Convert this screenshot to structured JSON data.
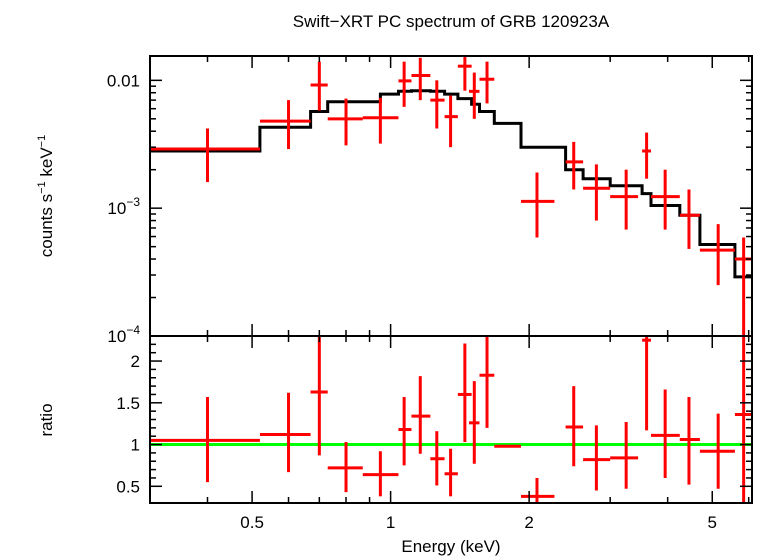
{
  "chart_data": {
    "type": "scatter",
    "title": "Swift−XRT PC spectrum of GRB 120923A",
    "xlabel": "Energy (keV)",
    "xscale": "log",
    "xlim": [
      0.3,
      6.1
    ],
    "x_ticks": [
      {
        "value": 0.5,
        "label": "0.5"
      },
      {
        "value": 1,
        "label": "1"
      },
      {
        "value": 2,
        "label": "2"
      },
      {
        "value": 5,
        "label": "5"
      }
    ],
    "colors": {
      "data": "#ff0000",
      "model": "#000000",
      "unity": "#00ff00"
    },
    "panels": [
      {
        "name": "spectrum",
        "ylabel_main": "counts s",
        "ylabel_sup1": "−1",
        "ylabel_mid": " keV",
        "ylabel_sup2": "−1",
        "yscale": "log",
        "ylim": [
          0.0001,
          0.0155
        ],
        "y_ticks": [
          {
            "value": 0.01,
            "base": "0.01",
            "exp": ""
          },
          {
            "value": 0.001,
            "base": "10",
            "exp": "−3"
          },
          {
            "value": 0.0001,
            "base": "10",
            "exp": "−4"
          }
        ],
        "data": [
          {
            "x": 0.4,
            "xlo": 0.3,
            "xhi": 0.52,
            "y": 0.0029,
            "ylo": 0.0016,
            "yhi": 0.0042
          },
          {
            "x": 0.6,
            "xlo": 0.52,
            "xhi": 0.67,
            "y": 0.0048,
            "ylo": 0.0029,
            "yhi": 0.007
          },
          {
            "x": 0.7,
            "xlo": 0.67,
            "xhi": 0.73,
            "y": 0.0092,
            "ylo": 0.0058,
            "yhi": 0.014
          },
          {
            "x": 0.8,
            "xlo": 0.73,
            "xhi": 0.87,
            "y": 0.005,
            "ylo": 0.0031,
            "yhi": 0.0072
          },
          {
            "x": 0.95,
            "xlo": 0.87,
            "xhi": 1.04,
            "y": 0.0051,
            "ylo": 0.0032,
            "yhi": 0.0073
          },
          {
            "x": 1.07,
            "xlo": 1.04,
            "xhi": 1.11,
            "y": 0.0099,
            "ylo": 0.0062,
            "yhi": 0.014
          },
          {
            "x": 1.16,
            "xlo": 1.11,
            "xhi": 1.22,
            "y": 0.0109,
            "ylo": 0.007,
            "yhi": 0.015
          },
          {
            "x": 1.26,
            "xlo": 1.22,
            "xhi": 1.31,
            "y": 0.007,
            "ylo": 0.0042,
            "yhi": 0.01
          },
          {
            "x": 1.35,
            "xlo": 1.31,
            "xhi": 1.4,
            "y": 0.0052,
            "ylo": 0.003,
            "yhi": 0.0076
          },
          {
            "x": 1.45,
            "xlo": 1.4,
            "xhi": 1.5,
            "y": 0.0129,
            "ylo": 0.0083,
            "yhi": 0.0155
          },
          {
            "x": 1.52,
            "xlo": 1.48,
            "xhi": 1.56,
            "y": 0.0082,
            "ylo": 0.005,
            "yhi": 0.0115
          },
          {
            "x": 1.62,
            "xlo": 1.56,
            "xhi": 1.68,
            "y": 0.0102,
            "ylo": 0.0066,
            "yhi": 0.014
          },
          {
            "x": 2.08,
            "xlo": 1.92,
            "xhi": 2.27,
            "y": 0.00113,
            "ylo": 0.00059,
            "yhi": 0.0019
          },
          {
            "x": 2.5,
            "xlo": 2.4,
            "xhi": 2.62,
            "y": 0.0023,
            "ylo": 0.0014,
            "yhi": 0.0033
          },
          {
            "x": 2.8,
            "xlo": 2.62,
            "xhi": 3.0,
            "y": 0.00143,
            "ylo": 0.0008,
            "yhi": 0.0022
          },
          {
            "x": 3.25,
            "xlo": 3.0,
            "xhi": 3.45,
            "y": 0.00123,
            "ylo": 0.00068,
            "yhi": 0.002
          },
          {
            "x": 3.6,
            "xlo": 3.52,
            "xhi": 3.68,
            "y": 0.0028,
            "ylo": 0.0017,
            "yhi": 0.0039
          },
          {
            "x": 3.95,
            "xlo": 3.68,
            "xhi": 4.25,
            "y": 0.00123,
            "ylo": 0.00068,
            "yhi": 0.002
          },
          {
            "x": 4.45,
            "xlo": 4.25,
            "xhi": 4.7,
            "y": 0.00088,
            "ylo": 0.00048,
            "yhi": 0.0014
          },
          {
            "x": 5.15,
            "xlo": 4.7,
            "xhi": 5.6,
            "y": 0.00047,
            "ylo": 0.00025,
            "yhi": 0.00075
          },
          {
            "x": 5.85,
            "xlo": 5.6,
            "xhi": 6.1,
            "y": 0.0004,
            "ylo": 0.0001,
            "yhi": 0.00059
          }
        ],
        "model_steps": [
          {
            "xlo": 0.3,
            "xhi": 0.52,
            "y": 0.0028
          },
          {
            "xlo": 0.52,
            "xhi": 0.67,
            "y": 0.0043
          },
          {
            "xlo": 0.67,
            "xhi": 0.73,
            "y": 0.0057
          },
          {
            "xlo": 0.73,
            "xhi": 0.87,
            "y": 0.0068
          },
          {
            "xlo": 0.87,
            "xhi": 0.95,
            "y": 0.0068
          },
          {
            "xlo": 0.95,
            "xhi": 1.04,
            "y": 0.0078
          },
          {
            "xlo": 1.04,
            "xhi": 1.11,
            "y": 0.0082
          },
          {
            "xlo": 1.11,
            "xhi": 1.22,
            "y": 0.0083
          },
          {
            "xlo": 1.22,
            "xhi": 1.31,
            "y": 0.0082
          },
          {
            "xlo": 1.31,
            "xhi": 1.4,
            "y": 0.0078
          },
          {
            "xlo": 1.4,
            "xhi": 1.5,
            "y": 0.0072
          },
          {
            "xlo": 1.5,
            "xhi": 1.56,
            "y": 0.0065
          },
          {
            "xlo": 1.56,
            "xhi": 1.68,
            "y": 0.0057
          },
          {
            "xlo": 1.68,
            "xhi": 1.92,
            "y": 0.0046
          },
          {
            "xlo": 1.92,
            "xhi": 2.4,
            "y": 0.003
          },
          {
            "xlo": 2.4,
            "xhi": 2.62,
            "y": 0.002
          },
          {
            "xlo": 2.62,
            "xhi": 3.0,
            "y": 0.0017
          },
          {
            "xlo": 3.0,
            "xhi": 3.52,
            "y": 0.0015
          },
          {
            "xlo": 3.52,
            "xhi": 3.68,
            "y": 0.0013
          },
          {
            "xlo": 3.68,
            "xhi": 4.25,
            "y": 0.00105
          },
          {
            "xlo": 4.25,
            "xhi": 4.7,
            "y": 0.00088
          },
          {
            "xlo": 4.7,
            "xhi": 5.6,
            "y": 0.00052
          },
          {
            "xlo": 5.6,
            "xhi": 6.1,
            "y": 0.00029
          }
        ]
      },
      {
        "name": "ratio",
        "ylabel": "ratio",
        "yscale": "linear",
        "ylim": [
          0.3,
          2.3
        ],
        "y_ticks": [
          {
            "value": 0.5,
            "label": "0.5"
          },
          {
            "value": 1,
            "label": "1"
          },
          {
            "value": 1.5,
            "label": "1.5"
          },
          {
            "value": 2,
            "label": "2"
          }
        ],
        "unity_y": 1.0,
        "data": [
          {
            "x": 0.4,
            "xlo": 0.3,
            "xhi": 0.52,
            "y": 1.05,
            "ylo": 0.55,
            "yhi": 1.57
          },
          {
            "x": 0.6,
            "xlo": 0.52,
            "xhi": 0.67,
            "y": 1.12,
            "ylo": 0.67,
            "yhi": 1.62
          },
          {
            "x": 0.7,
            "xlo": 0.67,
            "xhi": 0.73,
            "y": 1.63,
            "ylo": 0.87,
            "yhi": 2.3
          },
          {
            "x": 0.8,
            "xlo": 0.73,
            "xhi": 0.87,
            "y": 0.72,
            "ylo": 0.43,
            "yhi": 1.03
          },
          {
            "x": 0.95,
            "xlo": 0.87,
            "xhi": 1.04,
            "y": 0.64,
            "ylo": 0.38,
            "yhi": 0.92
          },
          {
            "x": 1.07,
            "xlo": 1.04,
            "xhi": 1.11,
            "y": 1.18,
            "ylo": 0.75,
            "yhi": 1.57
          },
          {
            "x": 1.16,
            "xlo": 1.11,
            "xhi": 1.22,
            "y": 1.34,
            "ylo": 0.89,
            "yhi": 1.82
          },
          {
            "x": 1.26,
            "xlo": 1.22,
            "xhi": 1.31,
            "y": 0.83,
            "ylo": 0.51,
            "yhi": 1.16
          },
          {
            "x": 1.35,
            "xlo": 1.31,
            "xhi": 1.4,
            "y": 0.65,
            "ylo": 0.38,
            "yhi": 0.95
          },
          {
            "x": 1.45,
            "xlo": 1.4,
            "xhi": 1.5,
            "y": 1.6,
            "ylo": 1.03,
            "yhi": 2.21
          },
          {
            "x": 1.52,
            "xlo": 1.48,
            "xhi": 1.56,
            "y": 1.26,
            "ylo": 0.77,
            "yhi": 1.76
          },
          {
            "x": 1.62,
            "xlo": 1.56,
            "xhi": 1.68,
            "y": 1.83,
            "ylo": 1.2,
            "yhi": 2.3
          },
          {
            "x": 1.85,
            "xlo": 1.68,
            "xhi": 1.92,
            "y": 0.98,
            "ylo": 0.98,
            "yhi": 0.98
          },
          {
            "x": 2.08,
            "xlo": 1.92,
            "xhi": 2.27,
            "y": 0.38,
            "ylo": 0.3,
            "yhi": 0.6
          },
          {
            "x": 2.5,
            "xlo": 2.4,
            "xhi": 2.62,
            "y": 1.21,
            "ylo": 0.74,
            "yhi": 1.7
          },
          {
            "x": 2.8,
            "xlo": 2.62,
            "xhi": 3.0,
            "y": 0.82,
            "ylo": 0.45,
            "yhi": 1.23
          },
          {
            "x": 3.25,
            "xlo": 3.0,
            "xhi": 3.45,
            "y": 0.84,
            "ylo": 0.47,
            "yhi": 1.27
          },
          {
            "x": 3.6,
            "xlo": 3.52,
            "xhi": 3.68,
            "y": 2.25,
            "ylo": 1.17,
            "yhi": 2.3
          },
          {
            "x": 3.95,
            "xlo": 3.68,
            "xhi": 4.25,
            "y": 1.11,
            "ylo": 0.6,
            "yhi": 1.66
          },
          {
            "x": 4.45,
            "xlo": 4.25,
            "xhi": 4.7,
            "y": 1.06,
            "ylo": 0.52,
            "yhi": 1.57
          },
          {
            "x": 5.15,
            "xlo": 4.7,
            "xhi": 5.6,
            "y": 0.92,
            "ylo": 0.47,
            "yhi": 1.37
          },
          {
            "x": 5.85,
            "xlo": 5.6,
            "xhi": 6.1,
            "y": 1.36,
            "ylo": 0.3,
            "yhi": 2.3
          }
        ]
      }
    ]
  }
}
